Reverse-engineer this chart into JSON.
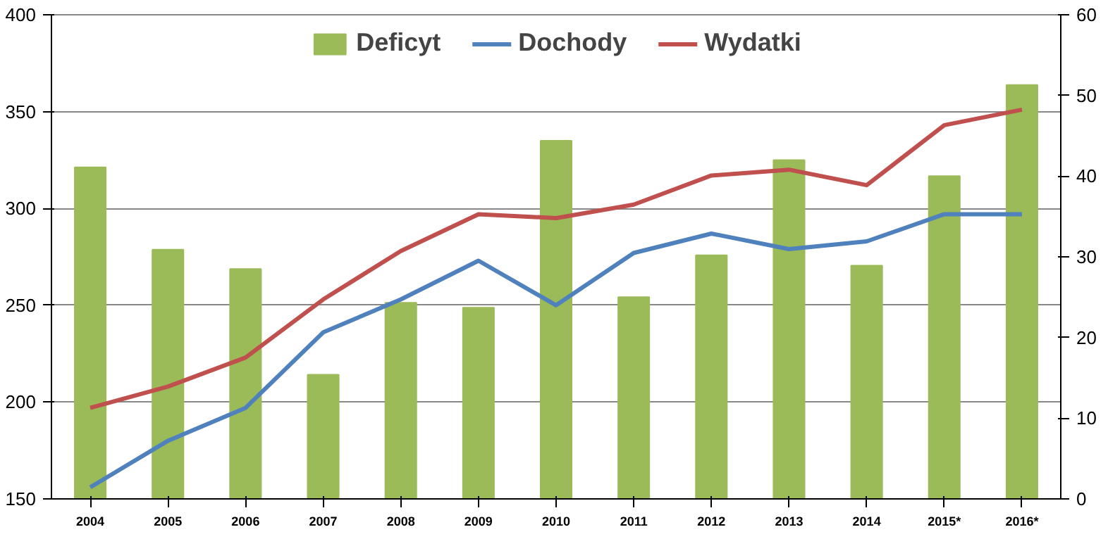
{
  "chart_data": {
    "type": "line",
    "categories": [
      "2004",
      "2005",
      "2006",
      "2007",
      "2008",
      "2009",
      "2010",
      "2011",
      "2012",
      "2013",
      "2014",
      "2015*",
      "2016*"
    ],
    "series": [
      {
        "name": "Deficyt",
        "type": "bar",
        "axis": "y2",
        "color": "#9bbb59",
        "values": [
          41.1,
          30.9,
          28.5,
          15.4,
          24.3,
          23.7,
          44.4,
          25,
          30.2,
          42,
          28.9,
          40,
          51.3
        ]
      },
      {
        "name": "Dochody",
        "color": "#4f81bd",
        "values": [
          156,
          180,
          197,
          236,
          253,
          273,
          250,
          277,
          287,
          279,
          283,
          297,
          297
        ]
      },
      {
        "name": "Wydatki",
        "color": "#c0504d",
        "values": [
          197,
          208,
          223,
          253,
          278,
          297,
          295,
          302,
          317,
          320,
          312,
          343,
          351
        ]
      }
    ],
    "ylim": [
      150,
      400
    ],
    "yticks": [
      150,
      200,
      250,
      300,
      350,
      400
    ],
    "y2lim": [
      0,
      60
    ],
    "y2ticks": [
      0,
      10,
      20,
      30,
      40,
      50,
      60
    ],
    "grid": "y",
    "legend": "top",
    "marker": "none",
    "line_style": "solid"
  }
}
